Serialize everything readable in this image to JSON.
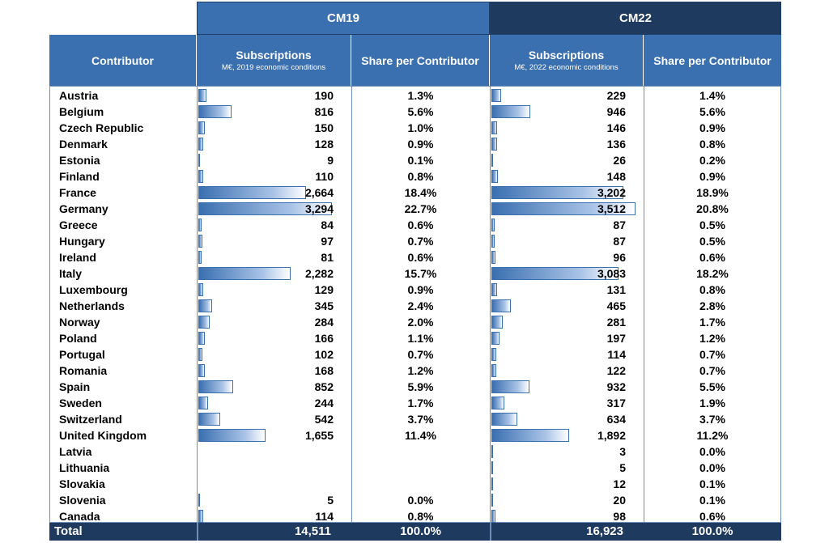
{
  "groups": {
    "cm19": "CM19",
    "cm22": "CM22"
  },
  "headers": {
    "contributor": "Contributor",
    "subscriptions": "Subscriptions",
    "sub19": "M€, 2019 economic conditions",
    "sub22": "M€, 2022 economic conditions",
    "share": "Share per Contributor"
  },
  "rows": [
    {
      "name": "Austria",
      "s19": "190",
      "p19": "1.3%",
      "s22": "229",
      "p22": "1.4%",
      "v19": 190,
      "v22": 229
    },
    {
      "name": "Belgium",
      "s19": "816",
      "p19": "5.6%",
      "s22": "946",
      "p22": "5.6%",
      "v19": 816,
      "v22": 946
    },
    {
      "name": "Czech Republic",
      "s19": "150",
      "p19": "1.0%",
      "s22": "146",
      "p22": "0.9%",
      "v19": 150,
      "v22": 146
    },
    {
      "name": "Denmark",
      "s19": "128",
      "p19": "0.9%",
      "s22": "136",
      "p22": "0.8%",
      "v19": 128,
      "v22": 136
    },
    {
      "name": "Estonia",
      "s19": "9",
      "p19": "0.1%",
      "s22": "26",
      "p22": "0.2%",
      "v19": 9,
      "v22": 26
    },
    {
      "name": "Finland",
      "s19": "110",
      "p19": "0.8%",
      "s22": "148",
      "p22": "0.9%",
      "v19": 110,
      "v22": 148
    },
    {
      "name": "France",
      "s19": "2,664",
      "p19": "18.4%",
      "s22": "3,202",
      "p22": "18.9%",
      "v19": 2664,
      "v22": 3202
    },
    {
      "name": "Germany",
      "s19": "3,294",
      "p19": "22.7%",
      "s22": "3,512",
      "p22": "20.8%",
      "v19": 3294,
      "v22": 3512
    },
    {
      "name": "Greece",
      "s19": "84",
      "p19": "0.6%",
      "s22": "87",
      "p22": "0.5%",
      "v19": 84,
      "v22": 87
    },
    {
      "name": "Hungary",
      "s19": "97",
      "p19": "0.7%",
      "s22": "87",
      "p22": "0.5%",
      "v19": 97,
      "v22": 87
    },
    {
      "name": "Ireland",
      "s19": "81",
      "p19": "0.6%",
      "s22": "96",
      "p22": "0.6%",
      "v19": 81,
      "v22": 96
    },
    {
      "name": "Italy",
      "s19": "2,282",
      "p19": "15.7%",
      "s22": "3,083",
      "p22": "18.2%",
      "v19": 2282,
      "v22": 3083
    },
    {
      "name": "Luxembourg",
      "s19": "129",
      "p19": "0.9%",
      "s22": "131",
      "p22": "0.8%",
      "v19": 129,
      "v22": 131
    },
    {
      "name": "Netherlands",
      "s19": "345",
      "p19": "2.4%",
      "s22": "465",
      "p22": "2.8%",
      "v19": 345,
      "v22": 465
    },
    {
      "name": "Norway",
      "s19": "284",
      "p19": "2.0%",
      "s22": "281",
      "p22": "1.7%",
      "v19": 284,
      "v22": 281
    },
    {
      "name": "Poland",
      "s19": "166",
      "p19": "1.1%",
      "s22": "197",
      "p22": "1.2%",
      "v19": 166,
      "v22": 197
    },
    {
      "name": "Portugal",
      "s19": "102",
      "p19": "0.7%",
      "s22": "114",
      "p22": "0.7%",
      "v19": 102,
      "v22": 114
    },
    {
      "name": "Romania",
      "s19": "168",
      "p19": "1.2%",
      "s22": "122",
      "p22": "0.7%",
      "v19": 168,
      "v22": 122
    },
    {
      "name": "Spain",
      "s19": "852",
      "p19": "5.9%",
      "s22": "932",
      "p22": "5.5%",
      "v19": 852,
      "v22": 932
    },
    {
      "name": "Sweden",
      "s19": "244",
      "p19": "1.7%",
      "s22": "317",
      "p22": "1.9%",
      "v19": 244,
      "v22": 317
    },
    {
      "name": "Switzerland",
      "s19": "542",
      "p19": "3.7%",
      "s22": "634",
      "p22": "3.7%",
      "v19": 542,
      "v22": 634
    },
    {
      "name": "United Kingdom",
      "s19": "1,655",
      "p19": "11.4%",
      "s22": "1,892",
      "p22": "11.2%",
      "v19": 1655,
      "v22": 1892
    },
    {
      "name": "Latvia",
      "s19": "",
      "p19": "",
      "s22": "3",
      "p22": "0.0%",
      "v19": 0,
      "v22": 3
    },
    {
      "name": "Lithuania",
      "s19": "",
      "p19": "",
      "s22": "5",
      "p22": "0.0%",
      "v19": 0,
      "v22": 5
    },
    {
      "name": "Slovakia",
      "s19": "",
      "p19": "",
      "s22": "12",
      "p22": "0.1%",
      "v19": 0,
      "v22": 12
    },
    {
      "name": "Slovenia",
      "s19": "5",
      "p19": "0.0%",
      "s22": "20",
      "p22": "0.1%",
      "v19": 5,
      "v22": 20
    },
    {
      "name": "Canada",
      "s19": "114",
      "p19": "0.8%",
      "s22": "98",
      "p22": "0.6%",
      "v19": 114,
      "v22": 98
    }
  ],
  "total": {
    "label": "Total",
    "s19": "14,511",
    "p19": "100.0%",
    "s22": "16,923",
    "p22": "100.0%"
  },
  "colors": {
    "header": "#3a6fb0",
    "dark": "#1f3a5f",
    "bar": "#3a6fb0"
  }
}
